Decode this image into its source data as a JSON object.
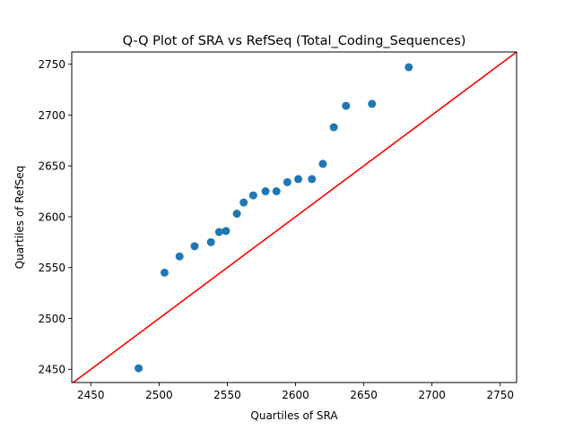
{
  "chart_data": {
    "type": "scatter",
    "title": "Q-Q Plot of SRA vs RefSeq (Total_Coding_Sequences)",
    "xlabel": "Quartiles of SRA",
    "ylabel": "Quartiles of RefSeq",
    "xlim": [
      2436,
      2762
    ],
    "ylim": [
      2437,
      2762
    ],
    "xticks": [
      2450,
      2500,
      2550,
      2600,
      2650,
      2700,
      2750
    ],
    "yticks": [
      2450,
      2500,
      2550,
      2600,
      2650,
      2700,
      2750
    ],
    "grid": false,
    "legend": "none",
    "marker_color": "#1f77b4",
    "reference_line": {
      "color": "#ff0000",
      "x": [
        2436,
        2762
      ],
      "y": [
        2436,
        2762
      ]
    },
    "points": [
      {
        "x": 2485,
        "y": 2451
      },
      {
        "x": 2504,
        "y": 2545
      },
      {
        "x": 2515,
        "y": 2561
      },
      {
        "x": 2526,
        "y": 2571
      },
      {
        "x": 2538,
        "y": 2575
      },
      {
        "x": 2544,
        "y": 2585
      },
      {
        "x": 2549,
        "y": 2586
      },
      {
        "x": 2557,
        "y": 2603
      },
      {
        "x": 2562,
        "y": 2614
      },
      {
        "x": 2569,
        "y": 2621
      },
      {
        "x": 2578,
        "y": 2625
      },
      {
        "x": 2586,
        "y": 2625
      },
      {
        "x": 2594,
        "y": 2634
      },
      {
        "x": 2602,
        "y": 2637
      },
      {
        "x": 2612,
        "y": 2637
      },
      {
        "x": 2620,
        "y": 2652
      },
      {
        "x": 2628,
        "y": 2688
      },
      {
        "x": 2637,
        "y": 2709
      },
      {
        "x": 2656,
        "y": 2711
      },
      {
        "x": 2683,
        "y": 2747
      }
    ]
  }
}
